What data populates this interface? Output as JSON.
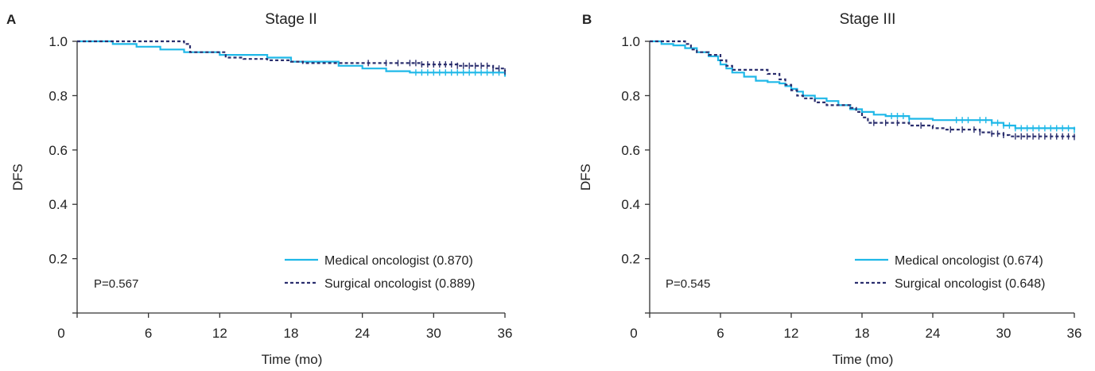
{
  "colors": {
    "medical": "#1fb8e8",
    "surgical": "#2b2f6e",
    "axis": "#333333"
  },
  "chart_data": [
    {
      "type": "line",
      "panel_letter": "A",
      "title": "Stage II",
      "xlabel": "Time (mo)",
      "ylabel": "DFS",
      "xlim": [
        0,
        36
      ],
      "ylim": [
        0,
        1.0
      ],
      "x_ticks": [
        "0",
        "6",
        "12",
        "18",
        "24",
        "30",
        "36"
      ],
      "y_ticks": [
        "0.2",
        "0.4",
        "0.6",
        "0.8",
        "1.0"
      ],
      "p_value": "P=0.567",
      "grid": false,
      "legend_position": "bottom-right",
      "series": [
        {
          "name": "Medical oncologist (0.870)",
          "style": "solid",
          "steps": [
            [
              0,
              1.0
            ],
            [
              3,
              0.99
            ],
            [
              5,
              0.98
            ],
            [
              7,
              0.97
            ],
            [
              9,
              0.96
            ],
            [
              12,
              0.95
            ],
            [
              16,
              0.94
            ],
            [
              18,
              0.925
            ],
            [
              22,
              0.91
            ],
            [
              24,
              0.9
            ],
            [
              26,
              0.89
            ],
            [
              28,
              0.885
            ],
            [
              35.8,
              0.885
            ],
            [
              36,
              0.87
            ]
          ],
          "censor_x": [
            28.5,
            29,
            29.5,
            30,
            30.5,
            31,
            31.5,
            32,
            32.5,
            33,
            33.5,
            34,
            34.5,
            35,
            35.5
          ]
        },
        {
          "name": "Surgical oncologist (0.889)",
          "style": "dashed",
          "steps": [
            [
              0,
              1.0
            ],
            [
              9,
              0.99
            ],
            [
              9.5,
              0.96
            ],
            [
              12,
              0.96
            ],
            [
              12.5,
              0.94
            ],
            [
              14,
              0.935
            ],
            [
              16,
              0.93
            ],
            [
              18,
              0.925
            ],
            [
              19,
              0.92
            ],
            [
              29,
              0.915
            ],
            [
              32,
              0.91
            ],
            [
              35,
              0.9
            ],
            [
              36,
              0.889
            ]
          ],
          "censor_x": [
            24.5,
            26,
            27,
            28,
            28.5,
            29,
            29.5,
            30,
            30.5,
            31,
            31.5,
            32,
            32.5,
            33,
            33.5,
            34,
            34.5,
            35,
            35.5,
            36
          ]
        }
      ]
    },
    {
      "type": "line",
      "panel_letter": "B",
      "title": "Stage III",
      "xlabel": "Time (mo)",
      "ylabel": "DFS",
      "xlim": [
        0,
        36
      ],
      "ylim": [
        0,
        1.0
      ],
      "x_ticks": [
        "0",
        "6",
        "12",
        "18",
        "24",
        "30",
        "36"
      ],
      "y_ticks": [
        "0.2",
        "0.4",
        "0.6",
        "0.8",
        "1.0"
      ],
      "p_value": "P=0.545",
      "grid": false,
      "legend_position": "bottom-right",
      "series": [
        {
          "name": "Medical oncologist (0.674)",
          "style": "solid",
          "steps": [
            [
              0,
              1.0
            ],
            [
              1,
              0.99
            ],
            [
              2,
              0.985
            ],
            [
              3,
              0.975
            ],
            [
              4,
              0.96
            ],
            [
              5,
              0.945
            ],
            [
              5.8,
              0.93
            ],
            [
              6,
              0.915
            ],
            [
              6.5,
              0.9
            ],
            [
              7,
              0.885
            ],
            [
              8,
              0.87
            ],
            [
              9,
              0.855
            ],
            [
              10,
              0.85
            ],
            [
              11,
              0.845
            ],
            [
              11.5,
              0.835
            ],
            [
              12,
              0.825
            ],
            [
              12.5,
              0.815
            ],
            [
              13,
              0.8
            ],
            [
              14,
              0.79
            ],
            [
              15,
              0.78
            ],
            [
              16,
              0.765
            ],
            [
              17,
              0.75
            ],
            [
              18,
              0.74
            ],
            [
              19,
              0.73
            ],
            [
              20,
              0.725
            ],
            [
              22,
              0.715
            ],
            [
              24,
              0.71
            ],
            [
              27,
              0.71
            ],
            [
              29,
              0.7
            ],
            [
              30,
              0.69
            ],
            [
              31,
              0.68
            ],
            [
              36,
              0.674
            ]
          ],
          "censor_x": [
            20.5,
            21,
            21.5,
            22,
            26,
            26.5,
            27,
            28,
            28.5,
            29,
            29.5,
            30,
            30.5,
            31,
            31.5,
            32,
            32.5,
            33,
            33.5,
            34,
            34.5,
            35,
            35.5,
            36
          ]
        },
        {
          "name": "Surgical oncologist (0.648)",
          "style": "dashed",
          "steps": [
            [
              0,
              1.0
            ],
            [
              3,
              0.99
            ],
            [
              3.5,
              0.97
            ],
            [
              4,
              0.96
            ],
            [
              5,
              0.95
            ],
            [
              6,
              0.93
            ],
            [
              6.5,
              0.91
            ],
            [
              7,
              0.895
            ],
            [
              10,
              0.88
            ],
            [
              11,
              0.86
            ],
            [
              11.5,
              0.84
            ],
            [
              12,
              0.82
            ],
            [
              12.5,
              0.8
            ],
            [
              13,
              0.79
            ],
            [
              14,
              0.775
            ],
            [
              15,
              0.765
            ],
            [
              17,
              0.755
            ],
            [
              17.5,
              0.74
            ],
            [
              18,
              0.72
            ],
            [
              18.5,
              0.7
            ],
            [
              22,
              0.69
            ],
            [
              24,
              0.68
            ],
            [
              25,
              0.675
            ],
            [
              28,
              0.665
            ],
            [
              29,
              0.66
            ],
            [
              30,
              0.655
            ],
            [
              30.5,
              0.65
            ],
            [
              36,
              0.648
            ]
          ],
          "censor_x": [
            19,
            20,
            21,
            23,
            25.5,
            26.5,
            27.5,
            28,
            29,
            29.5,
            30,
            31,
            31.5,
            32,
            32.5,
            33,
            33.5,
            34,
            34.5,
            35,
            35.5,
            36
          ]
        }
      ]
    }
  ]
}
